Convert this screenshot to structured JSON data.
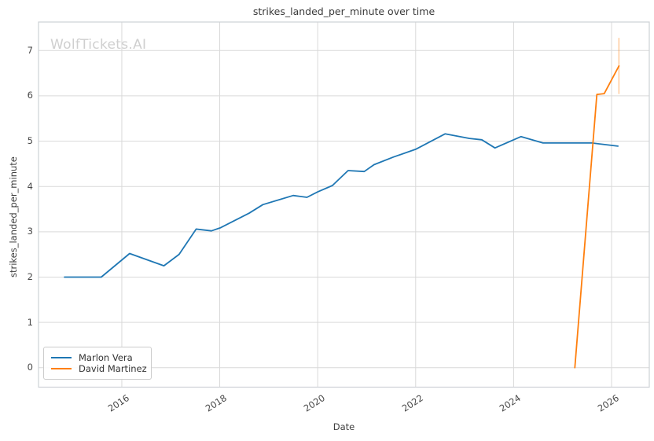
{
  "watermark": "WolfTickets.AI",
  "chart_data": {
    "type": "line",
    "title": "strikes_landed_per_minute over time",
    "xlabel": "Date",
    "ylabel": "strikes_landed_per_minute",
    "xlim": [
      2014.3,
      2026.77
    ],
    "ylim": [
      -0.43,
      7.63
    ],
    "x_ticks": [
      2016,
      2018,
      2020,
      2022,
      2024,
      2026
    ],
    "y_ticks": [
      0,
      1,
      2,
      3,
      4,
      5,
      6,
      7
    ],
    "grid": true,
    "legend_position": "lower-left",
    "series": [
      {
        "name": "Marlon Vera",
        "color": "#1f77b4",
        "points": [
          [
            2014.83,
            2.0
          ],
          [
            2015.58,
            2.0
          ],
          [
            2016.16,
            2.52
          ],
          [
            2016.86,
            2.25
          ],
          [
            2017.17,
            2.5
          ],
          [
            2017.52,
            3.06
          ],
          [
            2017.83,
            3.02
          ],
          [
            2018.02,
            3.09
          ],
          [
            2018.6,
            3.41
          ],
          [
            2018.88,
            3.6
          ],
          [
            2019.5,
            3.8
          ],
          [
            2019.78,
            3.76
          ],
          [
            2020.0,
            3.88
          ],
          [
            2020.3,
            4.02
          ],
          [
            2020.62,
            4.35
          ],
          [
            2020.95,
            4.33
          ],
          [
            2021.15,
            4.48
          ],
          [
            2021.55,
            4.65
          ],
          [
            2022.0,
            4.82
          ],
          [
            2022.6,
            5.16
          ],
          [
            2023.1,
            5.06
          ],
          [
            2023.35,
            5.03
          ],
          [
            2023.62,
            4.85
          ],
          [
            2024.15,
            5.1
          ],
          [
            2024.6,
            4.96
          ],
          [
            2025.6,
            4.96
          ],
          [
            2026.13,
            4.89
          ]
        ]
      },
      {
        "name": "David Martinez",
        "color": "#ff7f0e",
        "points": [
          [
            2025.25,
            0.0
          ],
          [
            2025.7,
            6.03
          ],
          [
            2025.85,
            6.05
          ],
          [
            2026.15,
            6.66
          ]
        ],
        "error_bar": {
          "x": 2026.15,
          "y_low": 6.04,
          "y_high": 7.28,
          "opacity": 0.38
        }
      }
    ],
    "colors": {
      "grid": "#d9d9d9",
      "spine": "#cdd1d6",
      "tick_label": "#484848",
      "title": "#3a3a3a",
      "watermark": "#cfcfcf",
      "background": "#ffffff"
    }
  }
}
